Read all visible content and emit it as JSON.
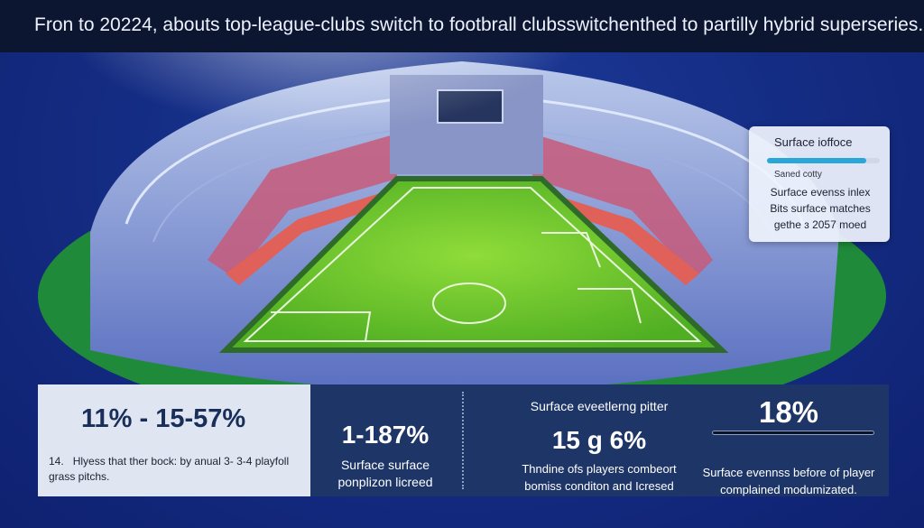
{
  "header": {
    "title": "Fron to 20224, abouts top-league-clubs switch to footbrall clubsswitchenthed to partilly hybrid superseries."
  },
  "callout": {
    "title": "Surface ioffoce",
    "progress": 0.88,
    "bar_label": "Saned cotty",
    "lines": [
      "Surface evenss inlex",
      "Bits surface matches",
      "gethe ɜ 2057 moed"
    ]
  },
  "stats": {
    "panel_a": {
      "big": "11% - 15-57%",
      "number": "14.",
      "text": "Hlyess that ther bock: by anual 3- 3-4 playfoll grass pitchs."
    },
    "panel_b": {
      "big": "1-187%",
      "line1": "Surface surface",
      "line2": "ponplizon licreed"
    },
    "panel_c": {
      "heading": "Surface eveetlerng pitter",
      "big": "15 g 6%",
      "line1": "Thndine ofs players combeort",
      "line2": "bomiss conditon and Icresed"
    },
    "panel_d": {
      "big": "18%",
      "line1": "Surface evennss before of player",
      "line2": "complained modumizated."
    }
  },
  "colors": {
    "background": "#152e86",
    "header_bg": "#0c1631",
    "pitch": "#6bc52a",
    "accent": "#2aa6d8"
  }
}
